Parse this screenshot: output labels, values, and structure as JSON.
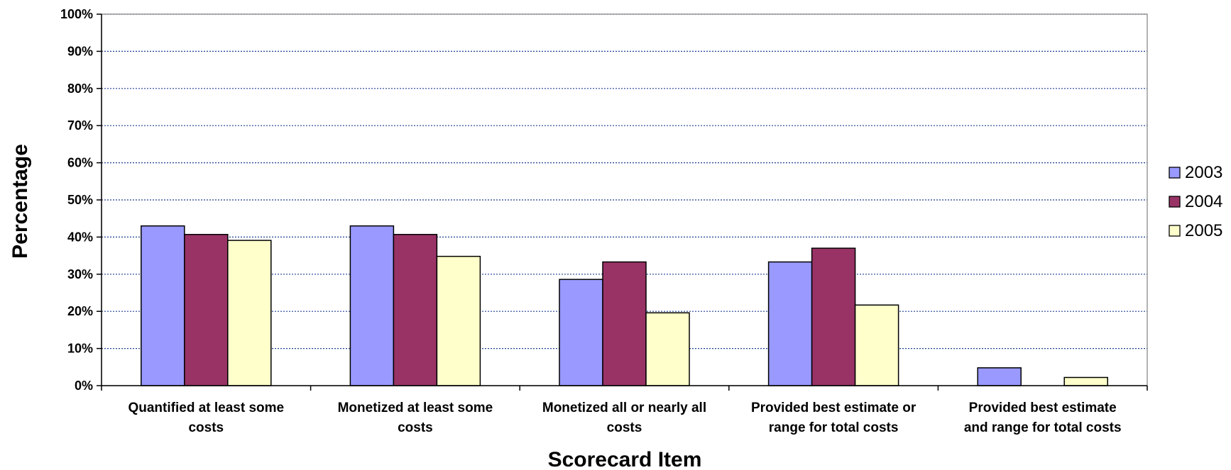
{
  "chart_data": {
    "type": "bar",
    "title": "",
    "xlabel": "Scorecard Item",
    "ylabel": "Percentage",
    "ylim": [
      0,
      100
    ],
    "yticks": [
      "0%",
      "10%",
      "20%",
      "30%",
      "40%",
      "50%",
      "60%",
      "70%",
      "80%",
      "90%",
      "100%"
    ],
    "grid": true,
    "legend_position": "right",
    "categories": [
      [
        "Quantified at least some",
        "costs"
      ],
      [
        "Monetized at least some",
        "costs"
      ],
      [
        "Monetized all or nearly all",
        "costs"
      ],
      [
        "Provided best estimate or",
        "range for total costs"
      ],
      [
        "Provided best estimate",
        "and range for total costs"
      ]
    ],
    "series": [
      {
        "name": "2003",
        "color": "#9999ff",
        "values": [
          43,
          43,
          28.6,
          33.3,
          4.8
        ]
      },
      {
        "name": "2004",
        "color": "#993366",
        "values": [
          40.7,
          40.7,
          33.3,
          37,
          0
        ]
      },
      {
        "name": "2005",
        "color": "#ffffcc",
        "values": [
          39.1,
          34.8,
          19.6,
          21.7,
          2.2
        ]
      }
    ]
  }
}
